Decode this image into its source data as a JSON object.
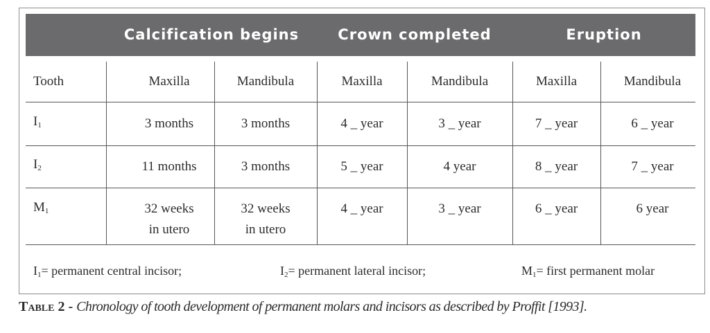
{
  "header": {
    "calcification": "Calcification begins",
    "crown": "Crown completed",
    "eruption": "Eruption"
  },
  "subheader": {
    "tooth": "Tooth",
    "cols": [
      "Maxilla",
      "Mandibula",
      "Maxilla",
      "Mandibula",
      "Maxilla",
      "Mandibula"
    ]
  },
  "rows": [
    {
      "tooth": "I",
      "tooth_sub": "1",
      "cells": [
        [
          "3 months"
        ],
        [
          "3 months"
        ],
        [
          "4 _ year"
        ],
        [
          "3 _ year"
        ],
        [
          "7 _ year"
        ],
        [
          "6 _ year"
        ]
      ]
    },
    {
      "tooth": "I",
      "tooth_sub": "2",
      "cells": [
        [
          "11 months"
        ],
        [
          "3 months"
        ],
        [
          "5 _ year"
        ],
        [
          "4 year"
        ],
        [
          "8 _ year"
        ],
        [
          "7 _ year"
        ]
      ]
    },
    {
      "tooth": "M",
      "tooth_sub": "1",
      "cells": [
        [
          "32 weeks",
          "in utero"
        ],
        [
          "32 weeks",
          "in utero"
        ],
        [
          "4 _ year"
        ],
        [
          "3 _ year"
        ],
        [
          "6 _ year"
        ],
        [
          "6 year"
        ]
      ]
    }
  ],
  "footnotes": [
    {
      "sym": "I",
      "sub": "1",
      "text": "= permanent central incisor;"
    },
    {
      "sym": "I",
      "sub": "2",
      "text": "= permanent lateral incisor;"
    },
    {
      "sym": "M",
      "sub": "1",
      "text": "= first permanent molar"
    }
  ],
  "caption": {
    "label": "Table 2 -",
    "text": "Chronology of tooth development of permanent molars and incisors as described by Proffit [1993]."
  }
}
